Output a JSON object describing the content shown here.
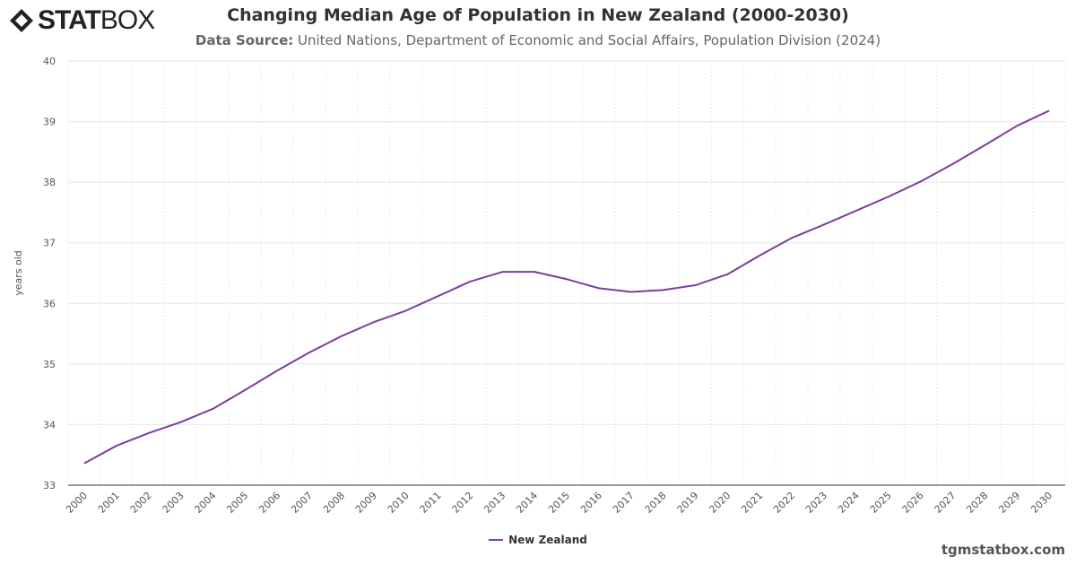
{
  "brand": {
    "logo_text_bold": "STAT",
    "logo_text_light": "BOX"
  },
  "header": {
    "title": "Changing Median Age of Population in New Zealand (2000-2030)",
    "source_label": "Data Source:",
    "source_text": " United Nations, Department of Economic and Social Affairs, Population Division (2024)"
  },
  "footer": {
    "credit": "tgmstatbox.com"
  },
  "chart_data": {
    "type": "line",
    "title": "Changing Median Age of Population in New Zealand (2000-2030)",
    "xlabel": "",
    "ylabel": "years old",
    "ylim": [
      33,
      40
    ],
    "yticks": [
      33,
      34,
      35,
      36,
      37,
      38,
      39,
      40
    ],
    "grid": true,
    "legend_position": "bottom",
    "colors": {
      "series": "#7b3f98",
      "grid": "#e6e6e6",
      "axis": "#333333"
    },
    "categories": [
      "2000",
      "2001",
      "2002",
      "2003",
      "2004",
      "2005",
      "2006",
      "2007",
      "2008",
      "2009",
      "2010",
      "2011",
      "2012",
      "2013",
      "2014",
      "2015",
      "2016",
      "2017",
      "2018",
      "2019",
      "2020",
      "2021",
      "2022",
      "2023",
      "2024",
      "2025",
      "2026",
      "2027",
      "2028",
      "2029",
      "2030"
    ],
    "series": [
      {
        "name": "New Zealand",
        "values": [
          33.36,
          33.65,
          33.86,
          34.04,
          34.26,
          34.57,
          34.89,
          35.19,
          35.46,
          35.69,
          35.88,
          36.12,
          36.36,
          36.52,
          36.52,
          36.4,
          36.25,
          36.19,
          36.22,
          36.3,
          36.48,
          36.79,
          37.08,
          37.3,
          37.53,
          37.76,
          38.01,
          38.3,
          38.61,
          38.93,
          39.18
        ]
      }
    ]
  }
}
